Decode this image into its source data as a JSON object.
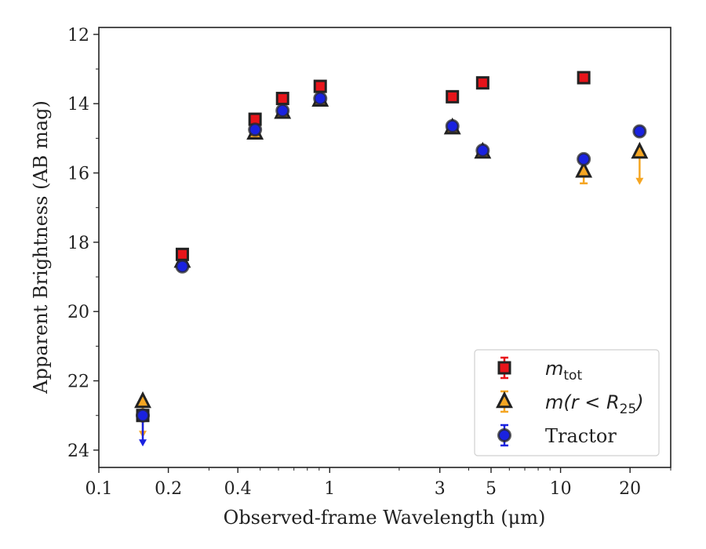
{
  "chart_data": {
    "type": "scatter",
    "xlabel_main": "Observed-frame Wavelength (",
    "xlabel_unit": "μm",
    "xlabel_end": ")",
    "ylabel": "Apparent Brightness (AB mag)",
    "xscale": "log",
    "xlim": [
      0.1,
      30
    ],
    "ylim": [
      24.5,
      11.8
    ],
    "y_inverted": true,
    "grid": false,
    "legend_position": "lower-right",
    "x_ticks": [
      {
        "value": 0.1,
        "label": "0.1"
      },
      {
        "value": 0.2,
        "label": "0.2"
      },
      {
        "value": 0.4,
        "label": "0.4"
      },
      {
        "value": 1,
        "label": "1"
      },
      {
        "value": 3,
        "label": "3"
      },
      {
        "value": 5,
        "label": "5"
      },
      {
        "value": 10,
        "label": "10"
      },
      {
        "value": 20,
        "label": "20"
      }
    ],
    "y_ticks": [
      {
        "value": 12,
        "label": "12"
      },
      {
        "value": 14,
        "label": "14"
      },
      {
        "value": 16,
        "label": "16"
      },
      {
        "value": 18,
        "label": "18"
      },
      {
        "value": 20,
        "label": "20"
      },
      {
        "value": 22,
        "label": "22"
      },
      {
        "value": 24,
        "label": "24"
      }
    ],
    "series": [
      {
        "legend_main": "m",
        "legend_sub": "tot",
        "marker": "square",
        "color": "#e8141a",
        "errcolor": "#e8141a",
        "points": [
          {
            "x": 0.155,
            "y": 23.0,
            "upper_limit": false
          },
          {
            "x": 0.23,
            "y": 18.35,
            "upper_limit": false
          },
          {
            "x": 0.475,
            "y": 14.45,
            "upper_limit": false
          },
          {
            "x": 0.625,
            "y": 13.85,
            "upper_limit": false
          },
          {
            "x": 0.91,
            "y": 13.5,
            "upper_limit": false
          },
          {
            "x": 3.4,
            "y": 13.8,
            "upper_limit": false
          },
          {
            "x": 4.6,
            "y": 13.4,
            "upper_limit": false
          },
          {
            "x": 12.6,
            "y": 13.25,
            "upper_limit": false
          }
        ]
      },
      {
        "legend_main": "m(r < R",
        "legend_sub": "25",
        "legend_end": ")",
        "marker": "triangle",
        "color": "#f5a623",
        "errcolor": "#f5a623",
        "points": [
          {
            "x": 0.155,
            "y": 22.6,
            "upper_limit": true,
            "arrow_to": 23.6
          },
          {
            "x": 0.23,
            "y": 18.55,
            "upper_limit": false
          },
          {
            "x": 0.475,
            "y": 14.85,
            "upper_limit": false
          },
          {
            "x": 0.625,
            "y": 14.25,
            "upper_limit": false
          },
          {
            "x": 0.91,
            "y": 13.9,
            "upper_limit": false
          },
          {
            "x": 3.4,
            "y": 14.7,
            "upper_limit": false
          },
          {
            "x": 4.6,
            "y": 15.4,
            "upper_limit": false
          },
          {
            "x": 12.6,
            "y": 15.95,
            "upper_limit": false,
            "err": 0.35
          },
          {
            "x": 22.0,
            "y": 15.4,
            "upper_limit": true,
            "arrow_to": 16.3
          }
        ]
      },
      {
        "legend_main": "Tractor",
        "marker": "circle",
        "color": "#1a22e0",
        "errcolor": "#1a22e0",
        "points": [
          {
            "x": 0.155,
            "y": 23.0,
            "upper_limit": true,
            "arrow_to": 23.85
          },
          {
            "x": 0.23,
            "y": 18.7,
            "upper_limit": false
          },
          {
            "x": 0.475,
            "y": 14.75,
            "upper_limit": false
          },
          {
            "x": 0.625,
            "y": 14.2,
            "upper_limit": false
          },
          {
            "x": 0.91,
            "y": 13.85,
            "upper_limit": false
          },
          {
            "x": 3.4,
            "y": 14.65,
            "upper_limit": false
          },
          {
            "x": 4.6,
            "y": 15.35,
            "upper_limit": false
          },
          {
            "x": 12.6,
            "y": 15.6,
            "upper_limit": false
          },
          {
            "x": 22.0,
            "y": 14.8,
            "upper_limit": false
          }
        ]
      }
    ]
  }
}
